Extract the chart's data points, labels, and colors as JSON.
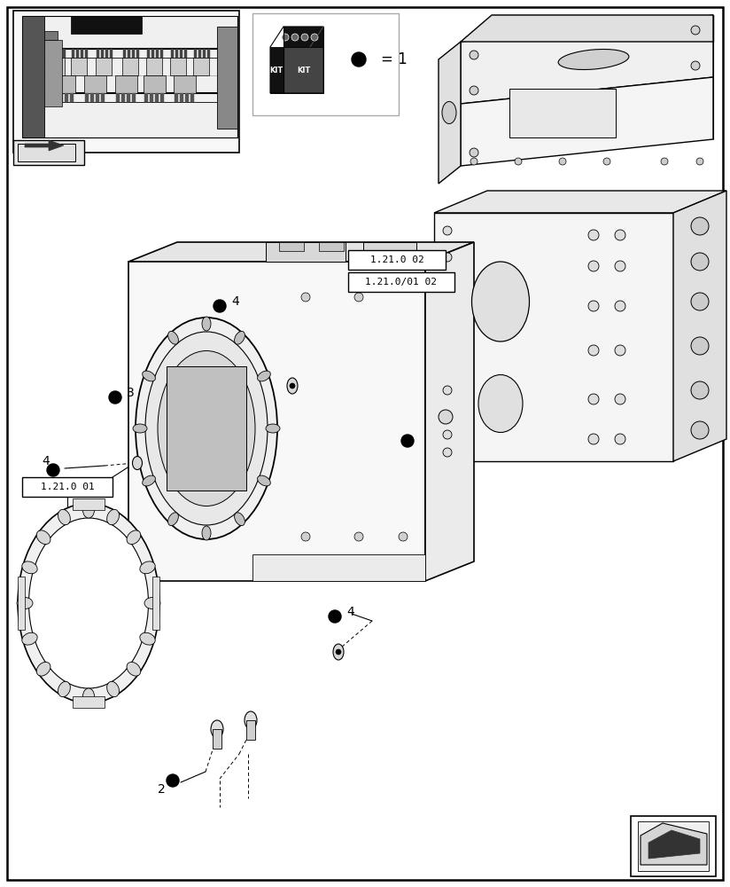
{
  "bg": "#ffffff",
  "black": "#000000",
  "lw_outer": 1.8,
  "lw_main": 1.0,
  "lw_thin": 0.6,
  "lw_dash": 0.7,
  "gray1": "#f5f5f5",
  "gray2": "#e8e8e8",
  "gray3": "#cccccc",
  "gray4": "#aaaaaa",
  "labels": {
    "box1": "1.21.0 01",
    "box2": "1.21.0 02",
    "box3": "1.21.0/01 02",
    "kit_eq": "= 1",
    "n2": "2",
    "n3": "3",
    "n4a": "4",
    "n4b": "4",
    "n4c": "4"
  }
}
